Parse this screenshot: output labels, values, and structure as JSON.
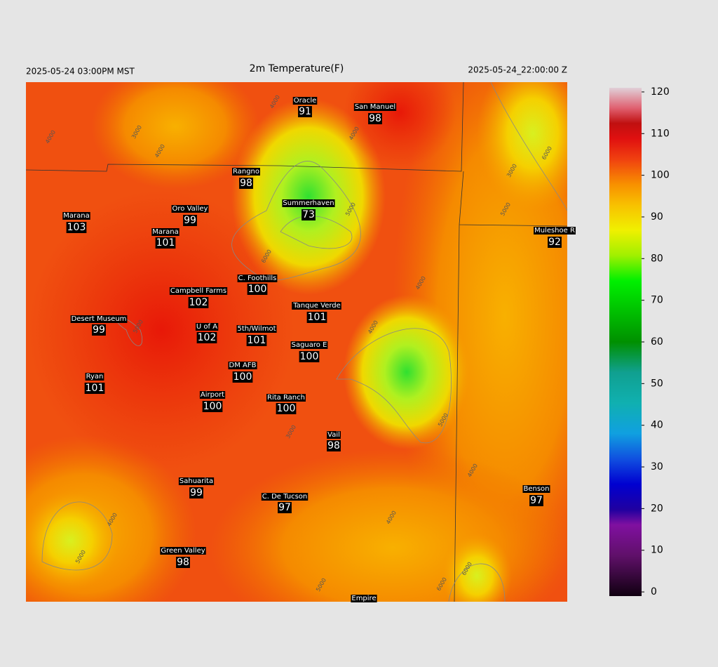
{
  "header": {
    "left": "2025-05-24 03:00PM MST",
    "title": "2m Temperature(F)",
    "right": "2025-05-24_22:00:00 Z"
  },
  "stations": [
    {
      "name": "Oracle",
      "value": 91
    },
    {
      "name": "San Manuel",
      "value": 98
    },
    {
      "name": "Rangno",
      "value": 98
    },
    {
      "name": "Summerhaven",
      "value": 73
    },
    {
      "name": "Marana",
      "value": 103
    },
    {
      "name": "Oro Valley",
      "value": 99
    },
    {
      "name": "Marana",
      "value": 101
    },
    {
      "name": "Muleshoe R",
      "value": 92
    },
    {
      "name": "C. Foothills",
      "value": 100
    },
    {
      "name": "Campbell Farms",
      "value": 102
    },
    {
      "name": "Tanque Verde",
      "value": 101
    },
    {
      "name": "Desert Museum",
      "value": 99
    },
    {
      "name": "U of A",
      "value": 102
    },
    {
      "name": "5th/Wilmot",
      "value": 101
    },
    {
      "name": "Saguaro E",
      "value": 100
    },
    {
      "name": "DM AFB",
      "value": 100
    },
    {
      "name": "Ryan",
      "value": 101
    },
    {
      "name": "Airport",
      "value": 100
    },
    {
      "name": "Rita Ranch",
      "value": 100
    },
    {
      "name": "Vail",
      "value": 98
    },
    {
      "name": "Sahuarita",
      "value": 99
    },
    {
      "name": "C. De Tucson",
      "value": 97
    },
    {
      "name": "Benson",
      "value": 97
    },
    {
      "name": "Green Valley",
      "value": 98
    },
    {
      "name": "Empire"
    }
  ],
  "colorbar": {
    "lim": [
      -1,
      121
    ],
    "ticks": [
      0,
      10,
      20,
      30,
      40,
      50,
      60,
      70,
      80,
      90,
      100,
      110,
      120
    ]
  },
  "contour_labels": [
    "4000",
    "3000",
    "4000",
    "4000",
    "6000",
    "5000",
    "6000",
    "4000",
    "3000",
    "5000",
    "4000",
    "5000",
    "4000",
    "3000",
    "4000",
    "5000",
    "4000",
    "5000",
    "6000",
    "5000",
    "6000",
    "4000"
  ]
}
